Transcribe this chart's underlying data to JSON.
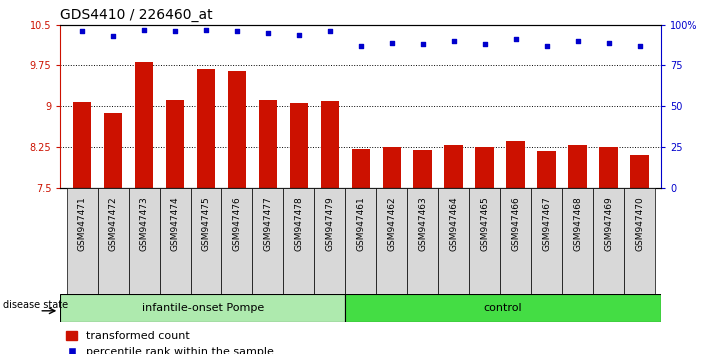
{
  "title": "GDS4410 / 226460_at",
  "samples": [
    "GSM947471",
    "GSM947472",
    "GSM947473",
    "GSM947474",
    "GSM947475",
    "GSM947476",
    "GSM947477",
    "GSM947478",
    "GSM947479",
    "GSM947461",
    "GSM947462",
    "GSM947463",
    "GSM947464",
    "GSM947465",
    "GSM947466",
    "GSM947467",
    "GSM947468",
    "GSM947469",
    "GSM947470"
  ],
  "bar_values": [
    9.07,
    8.87,
    9.82,
    9.12,
    9.68,
    9.65,
    9.12,
    9.05,
    9.1,
    8.22,
    8.25,
    8.19,
    8.28,
    8.25,
    8.35,
    8.17,
    8.28,
    8.25,
    8.1
  ],
  "dot_values": [
    96,
    93,
    97,
    96,
    97,
    96,
    95,
    94,
    96,
    87,
    89,
    88,
    90,
    88,
    91,
    87,
    90,
    89,
    87
  ],
  "group1_count": 9,
  "group2_count": 10,
  "group1_label": "infantile-onset Pompe",
  "group2_label": "control",
  "group1_color": "#aeeaae",
  "group2_color": "#44dd44",
  "bar_color": "#CC1100",
  "dot_color": "#0000CC",
  "ylim_left": [
    7.5,
    10.5
  ],
  "yticks_left": [
    7.5,
    8.25,
    9.0,
    9.75,
    10.5
  ],
  "ytick_labels_left": [
    "7.5",
    "8.25",
    "9",
    "9.75",
    "10.5"
  ],
  "ylim_right": [
    0,
    100
  ],
  "yticks_right": [
    0,
    25,
    50,
    75,
    100
  ],
  "ytick_labels_right": [
    "0",
    "25",
    "50",
    "75",
    "100%"
  ],
  "disease_state_label": "disease state",
  "legend_bar_label": "transformed count",
  "legend_dot_label": "percentile rank within the sample",
  "bar_width": 0.6,
  "background_color": "#ffffff",
  "plot_bg_color": "#ffffff",
  "title_fontsize": 10,
  "tick_fontsize": 7,
  "label_fontsize": 9,
  "xtick_bg_color": "#d8d8d8"
}
